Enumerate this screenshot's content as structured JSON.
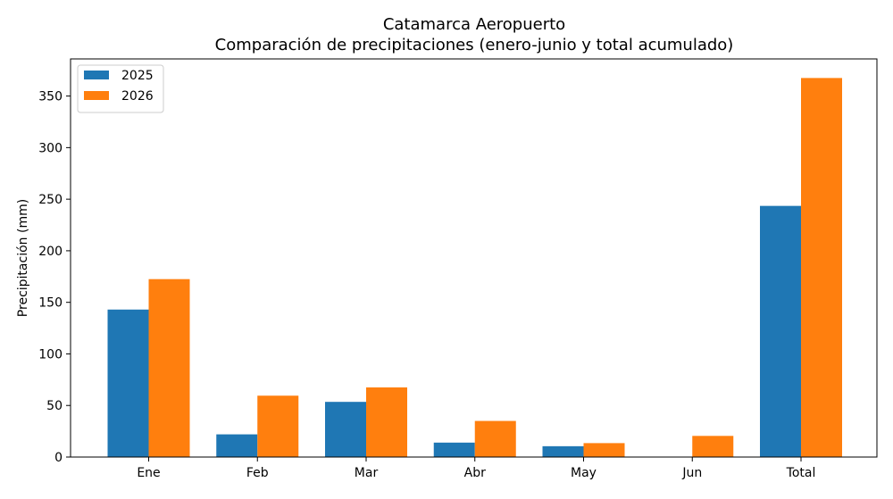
{
  "chart_data": {
    "type": "bar",
    "title": "Catamarca Aeropuerto",
    "subtitle": "Comparación de precipitaciones (enero-junio y total acumulado)",
    "xlabel": "",
    "ylabel": "Precipitación (mm)",
    "categories": [
      "Ene",
      "Feb",
      "Mar",
      "Abr",
      "May",
      "Jun",
      "Total"
    ],
    "series": [
      {
        "name": "2025",
        "color": "#1f77b4",
        "values": [
          143,
          22,
          53.5,
          14,
          10.5,
          0,
          243.5
        ]
      },
      {
        "name": "2026",
        "color": "#ff7f0e",
        "values": [
          172.5,
          59.5,
          67.5,
          35,
          13.5,
          20.5,
          367.5
        ]
      }
    ],
    "ylim": [
      0,
      386
    ],
    "yticks": [
      0,
      50,
      100,
      150,
      200,
      250,
      300,
      350
    ],
    "grid": false,
    "legend_position": "top-left"
  }
}
